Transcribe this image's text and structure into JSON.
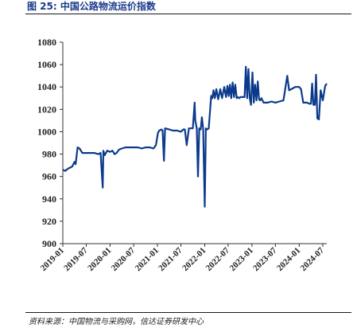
{
  "header": {
    "title": "图 25:  中国公路物流运价指数"
  },
  "footer": {
    "source": "资料来源：中国物流与采购网，信达证券研发中心"
  },
  "colors": {
    "line": "#0b3a8c",
    "axis": "#333333"
  },
  "chart_data": {
    "type": "line",
    "title": "",
    "xlabel": "",
    "ylabel": "",
    "ylim": [
      900,
      1080
    ],
    "yticks": [
      900,
      920,
      940,
      960,
      980,
      1000,
      1020,
      1040,
      1060,
      1080
    ],
    "xlim": [
      "2019-01",
      "2024-08"
    ],
    "xticks": [
      "2019-01",
      "2019-07",
      "2020-01",
      "2020-07",
      "2021-01",
      "2021-07",
      "2022-01",
      "2022-07",
      "2023-01",
      "2023-07",
      "2024-01",
      "2024-07"
    ],
    "grid": false,
    "legend": "none",
    "series": [
      {
        "x": [
          "2019-01-01",
          "2019-01-20",
          "2019-02-10",
          "2019-03-01",
          "2019-03-15",
          "2019-04-01",
          "2019-04-10",
          "2019-04-25",
          "2019-05-10",
          "2019-06-01",
          "2019-07-01",
          "2019-08-01",
          "2019-09-01",
          "2019-10-01",
          "2019-10-20",
          "2019-11-05",
          "2019-11-10",
          "2019-11-20",
          "2019-12-10",
          "2020-01-01",
          "2020-01-20",
          "2020-02-05",
          "2020-02-20",
          "2020-03-10",
          "2020-04-01",
          "2020-05-01",
          "2020-06-01",
          "2020-07-01",
          "2020-08-01",
          "2020-09-01",
          "2020-10-01",
          "2020-11-01",
          "2020-12-01",
          "2020-12-20",
          "2021-01-05",
          "2021-01-15",
          "2021-02-01",
          "2021-02-10",
          "2021-02-20",
          "2021-03-01",
          "2021-04-01",
          "2021-05-01",
          "2021-06-01",
          "2021-07-01",
          "2021-07-20",
          "2021-08-01",
          "2021-08-15",
          "2021-09-01",
          "2021-10-01",
          "2021-10-15",
          "2021-10-20",
          "2021-11-01",
          "2021-11-10",
          "2021-11-20",
          "2021-12-01",
          "2021-12-10",
          "2021-12-20",
          "2022-01-01",
          "2022-01-10",
          "2022-01-20",
          "2022-02-01",
          "2022-02-20",
          "2022-03-01",
          "2022-03-10",
          "2022-03-20",
          "2022-04-01",
          "2022-04-15",
          "2022-05-01",
          "2022-05-15",
          "2022-06-01",
          "2022-06-15",
          "2022-06-25",
          "2022-07-05",
          "2022-07-15",
          "2022-07-25",
          "2022-08-05",
          "2022-08-15",
          "2022-08-25",
          "2022-09-05",
          "2022-09-15",
          "2022-09-25",
          "2022-10-05",
          "2022-10-15",
          "2022-10-25",
          "2022-11-05",
          "2022-11-15",
          "2022-11-25",
          "2022-12-05",
          "2022-12-15",
          "2022-12-25",
          "2023-01-05",
          "2023-01-15",
          "2023-01-25",
          "2023-02-05",
          "2023-02-15",
          "2023-02-25",
          "2023-03-05",
          "2023-03-15",
          "2023-04-01",
          "2023-05-01",
          "2023-06-01",
          "2023-07-01",
          "2023-08-01",
          "2023-09-01",
          "2023-10-01",
          "2023-10-15",
          "2023-11-01",
          "2023-12-01",
          "2024-01-01",
          "2024-01-15",
          "2024-02-01",
          "2024-03-01",
          "2024-03-20",
          "2024-04-01",
          "2024-04-10",
          "2024-04-20",
          "2024-05-01",
          "2024-05-10",
          "2024-05-20",
          "2024-06-01",
          "2024-06-15",
          "2024-07-01",
          "2024-07-20",
          "2024-08-01"
        ],
        "values": [
          966,
          965,
          967,
          968,
          969,
          973,
          971,
          986,
          985,
          981,
          981,
          981,
          981,
          980,
          981,
          950,
          983,
          979,
          983,
          982,
          983,
          980,
          981,
          984,
          985,
          986,
          986,
          986,
          986,
          985,
          986,
          986,
          985,
          988,
          999,
          1001,
          1002,
          1001,
          974,
          1003,
          1002,
          1001,
          1001,
          1000,
          1002,
          1002,
          988,
          1003,
          1003,
          1026,
          1010,
          1003,
          960,
          1003,
          1002,
          1013,
          1003,
          933,
          1003,
          1002,
          1003,
          1032,
          1030,
          1037,
          1030,
          1038,
          1029,
          1038,
          1030,
          1040,
          1031,
          1041,
          1032,
          1042,
          1030,
          1044,
          1031,
          1042,
          1030,
          1031,
          1030,
          1031,
          1031,
          1031,
          1031,
          1058,
          1030,
          1056,
          1030,
          1024,
          1053,
          1026,
          1042,
          1028,
          1045,
          1029,
          1028,
          1030,
          1026,
          1026,
          1027,
          1026,
          1027,
          1028,
          1050,
          1037,
          1038,
          1040,
          1040,
          1038,
          1026,
          1026,
          1025,
          1025,
          1043,
          1024,
          1024,
          1051,
          1012,
          1011,
          1037,
          1028,
          1041,
          1043
        ]
      }
    ]
  }
}
